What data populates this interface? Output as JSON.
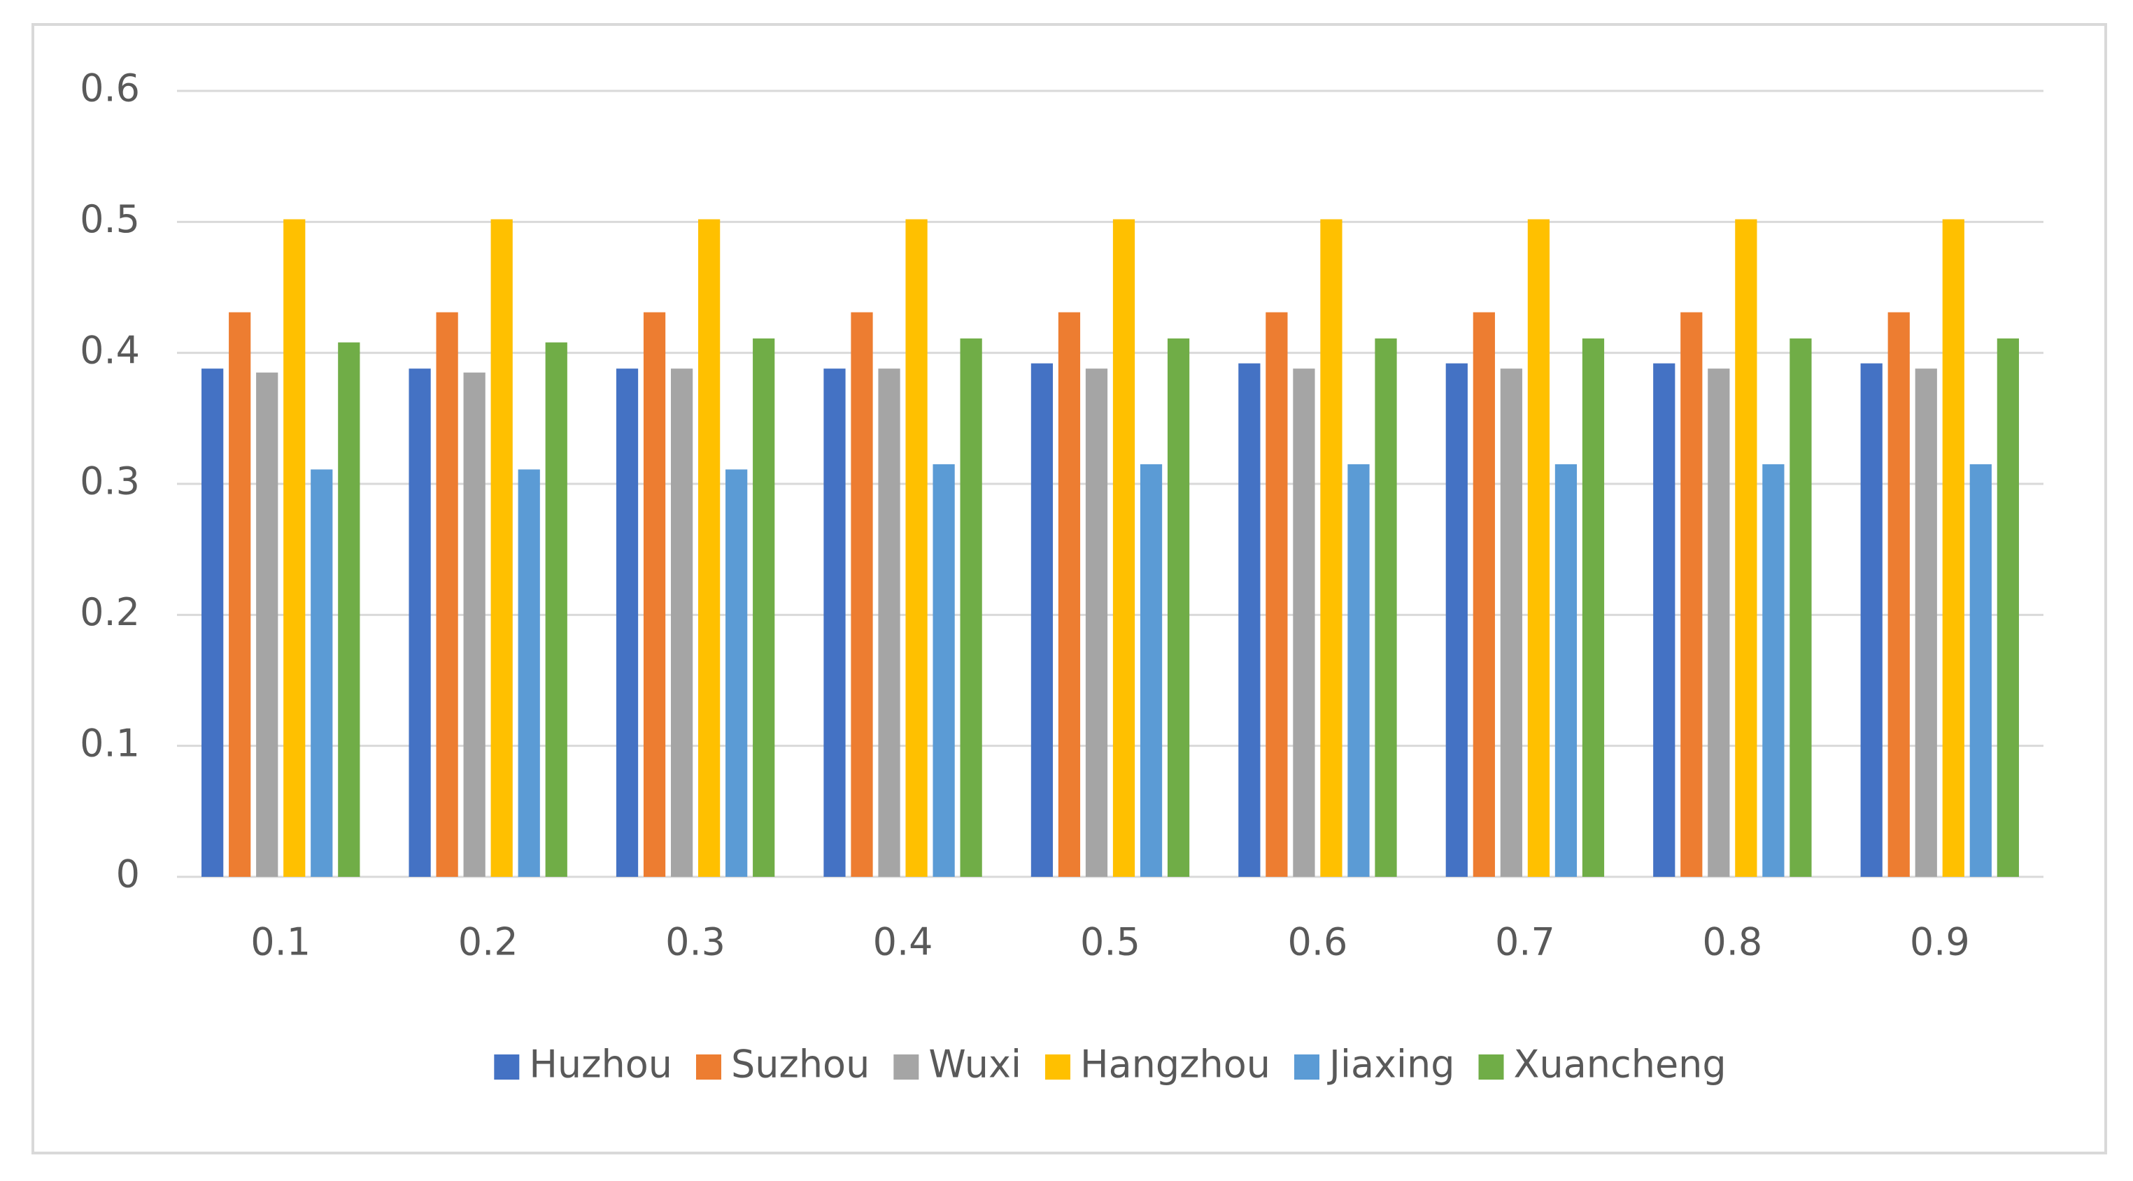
{
  "chart_data": {
    "type": "bar",
    "categories": [
      "0.1",
      "0.2",
      "0.3",
      "0.4",
      "0.5",
      "0.6",
      "0.7",
      "0.8",
      "0.9"
    ],
    "series": [
      {
        "name": "Huzhou",
        "color": "#4472c4",
        "values": [
          0.388,
          0.388,
          0.388,
          0.388,
          0.392,
          0.392,
          0.392,
          0.392,
          0.392
        ]
      },
      {
        "name": "Suzhou",
        "color": "#ed7d31",
        "values": [
          0.431,
          0.431,
          0.431,
          0.431,
          0.431,
          0.431,
          0.431,
          0.431,
          0.431
        ]
      },
      {
        "name": "Wuxi",
        "color": "#a5a5a5",
        "values": [
          0.385,
          0.385,
          0.388,
          0.388,
          0.388,
          0.388,
          0.388,
          0.388,
          0.388
        ]
      },
      {
        "name": "Hangzhou",
        "color": "#ffc000",
        "values": [
          0.502,
          0.502,
          0.502,
          0.502,
          0.502,
          0.502,
          0.502,
          0.502,
          0.502
        ]
      },
      {
        "name": "Jiaxing",
        "color": "#5b9bd5",
        "values": [
          0.311,
          0.311,
          0.311,
          0.315,
          0.315,
          0.315,
          0.315,
          0.315,
          0.315
        ]
      },
      {
        "name": "Xuancheng",
        "color": "#70ad47",
        "values": [
          0.408,
          0.408,
          0.411,
          0.411,
          0.411,
          0.411,
          0.411,
          0.411,
          0.411
        ]
      }
    ],
    "ylim": [
      0,
      0.6
    ],
    "yticks": [
      0,
      0.1,
      0.2,
      0.3,
      0.4,
      0.5,
      0.6
    ],
    "grid": true,
    "legend": "bottom"
  }
}
